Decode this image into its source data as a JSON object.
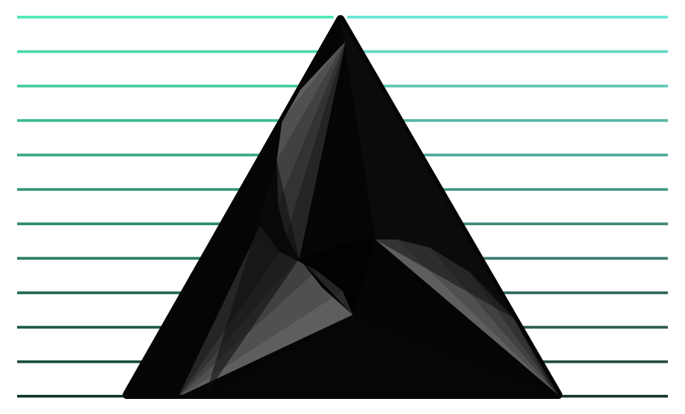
{
  "artwork": {
    "subject": "triangle-spiral-logo",
    "stripe_count": 12,
    "stripe_colors": {
      "left_top": "#4fe9b4",
      "left_bottom": "#123c2c",
      "right_top": "#6be6d2",
      "right_bottom": "#1e3a32"
    },
    "triangle_color": "#050505",
    "spiral_light": "#5e5e5e",
    "spiral_dark": "#0a0a0a",
    "background": "#ffffff"
  }
}
